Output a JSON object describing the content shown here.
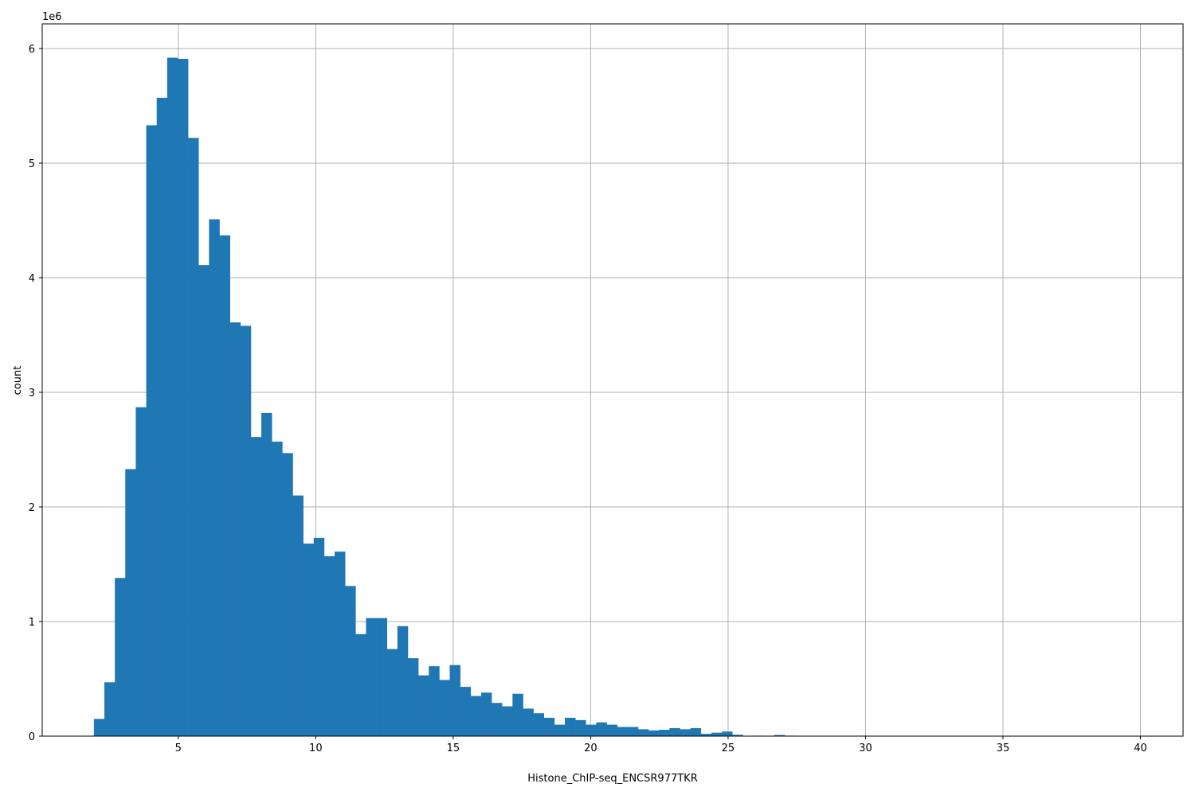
{
  "chart_data": {
    "type": "bar",
    "subtype": "histogram",
    "title": "",
    "xlabel": "Histone_ChIP-seq_ENCSR977TKR",
    "ylabel": "count",
    "y_offset_label": "1e6",
    "xlim": [
      0.05,
      41.55
    ],
    "ylim": [
      0,
      6215000
    ],
    "bin_range": [
      1.93,
      40.0
    ],
    "bins": 100,
    "grid": true,
    "color": "#1f77b4",
    "xticks": [
      5,
      10,
      15,
      20,
      25,
      30,
      35,
      40
    ],
    "xtick_labels": [
      "5",
      "10",
      "15",
      "20",
      "25",
      "30",
      "35",
      "40"
    ],
    "yticks": [
      0,
      1000000,
      2000000,
      3000000,
      4000000,
      5000000,
      6000000
    ],
    "ytick_labels": [
      "0",
      "1",
      "2",
      "3",
      "4",
      "5",
      "6"
    ],
    "values_millions": [
      0.15,
      0.47,
      1.38,
      2.33,
      2.87,
      5.33,
      5.57,
      5.92,
      5.91,
      5.22,
      4.11,
      4.51,
      4.37,
      3.61,
      3.58,
      2.61,
      2.82,
      2.57,
      2.47,
      2.1,
      1.68,
      1.73,
      1.57,
      1.61,
      1.31,
      0.89,
      1.03,
      1.03,
      0.76,
      0.96,
      0.68,
      0.53,
      0.61,
      0.49,
      0.62,
      0.43,
      0.35,
      0.38,
      0.29,
      0.26,
      0.37,
      0.24,
      0.2,
      0.16,
      0.1,
      0.16,
      0.14,
      0.1,
      0.12,
      0.1,
      0.08,
      0.08,
      0.06,
      0.05,
      0.055,
      0.07,
      0.06,
      0.07,
      0.02,
      0.03,
      0.04,
      0.012,
      0,
      0.004,
      0,
      0.01,
      0.004,
      0,
      0,
      0,
      0,
      0,
      0,
      0.004,
      0,
      0,
      0,
      0,
      0,
      0,
      0,
      0,
      0,
      0,
      0,
      0,
      0,
      0,
      0,
      0,
      0,
      0,
      0,
      0,
      0,
      0,
      0,
      0,
      0,
      0
    ]
  }
}
